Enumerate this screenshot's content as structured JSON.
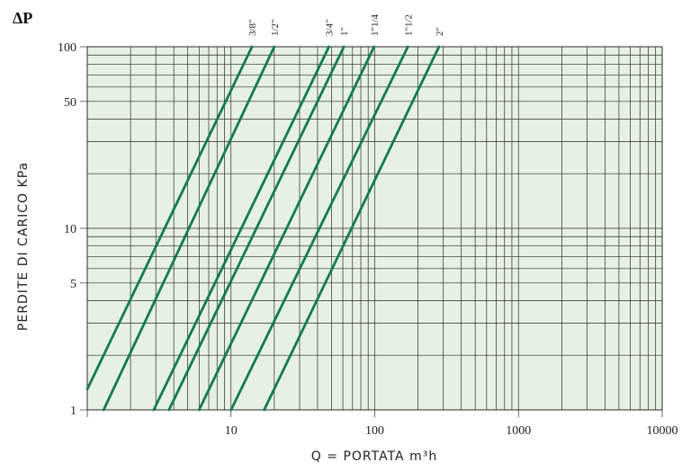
{
  "chart_data": {
    "type": "line",
    "title": "",
    "ylabel_symbol": "ΔP",
    "ylabel": "PERDITE DI CARICO KPa",
    "xlabel": "Q = PORTATA m³h",
    "x_scale": "log",
    "y_scale": "log",
    "xlim": [
      1,
      10000
    ],
    "ylim": [
      1,
      100
    ],
    "x_ticks": [
      {
        "value": 10,
        "label": "10"
      },
      {
        "value": 100,
        "label": "100"
      },
      {
        "value": 1000,
        "label": "1000"
      },
      {
        "value": 10000,
        "label": "10000"
      }
    ],
    "y_ticks": [
      {
        "value": 1,
        "label": "1"
      },
      {
        "value": 5,
        "label": "5"
      },
      {
        "value": 10,
        "label": "10"
      },
      {
        "value": 50,
        "label": "50"
      },
      {
        "value": 100,
        "label": "100"
      }
    ],
    "grid": true,
    "legend": "labels above lines at top",
    "line_color": "#137a55",
    "background_color": "#e6f1e3",
    "series": [
      {
        "name": "3/8\"",
        "points": [
          [
            1.0,
            1.3
          ],
          [
            14,
            100
          ]
        ]
      },
      {
        "name": "1/2\"",
        "points": [
          [
            1.3,
            1.0
          ],
          [
            20,
            100
          ]
        ]
      },
      {
        "name": "3/4\"",
        "points": [
          [
            2.9,
            1.0
          ],
          [
            48,
            100
          ]
        ]
      },
      {
        "name": "1\"",
        "points": [
          [
            3.7,
            1.0
          ],
          [
            61,
            100
          ]
        ]
      },
      {
        "name": "1\"1/4",
        "points": [
          [
            6.0,
            1.0
          ],
          [
            99,
            100
          ]
        ]
      },
      {
        "name": "1\"1/2",
        "points": [
          [
            10.0,
            1.0
          ],
          [
            170,
            100
          ]
        ]
      },
      {
        "name": "2\"",
        "points": [
          [
            17.0,
            1.0
          ],
          [
            280,
            100
          ]
        ]
      }
    ]
  }
}
